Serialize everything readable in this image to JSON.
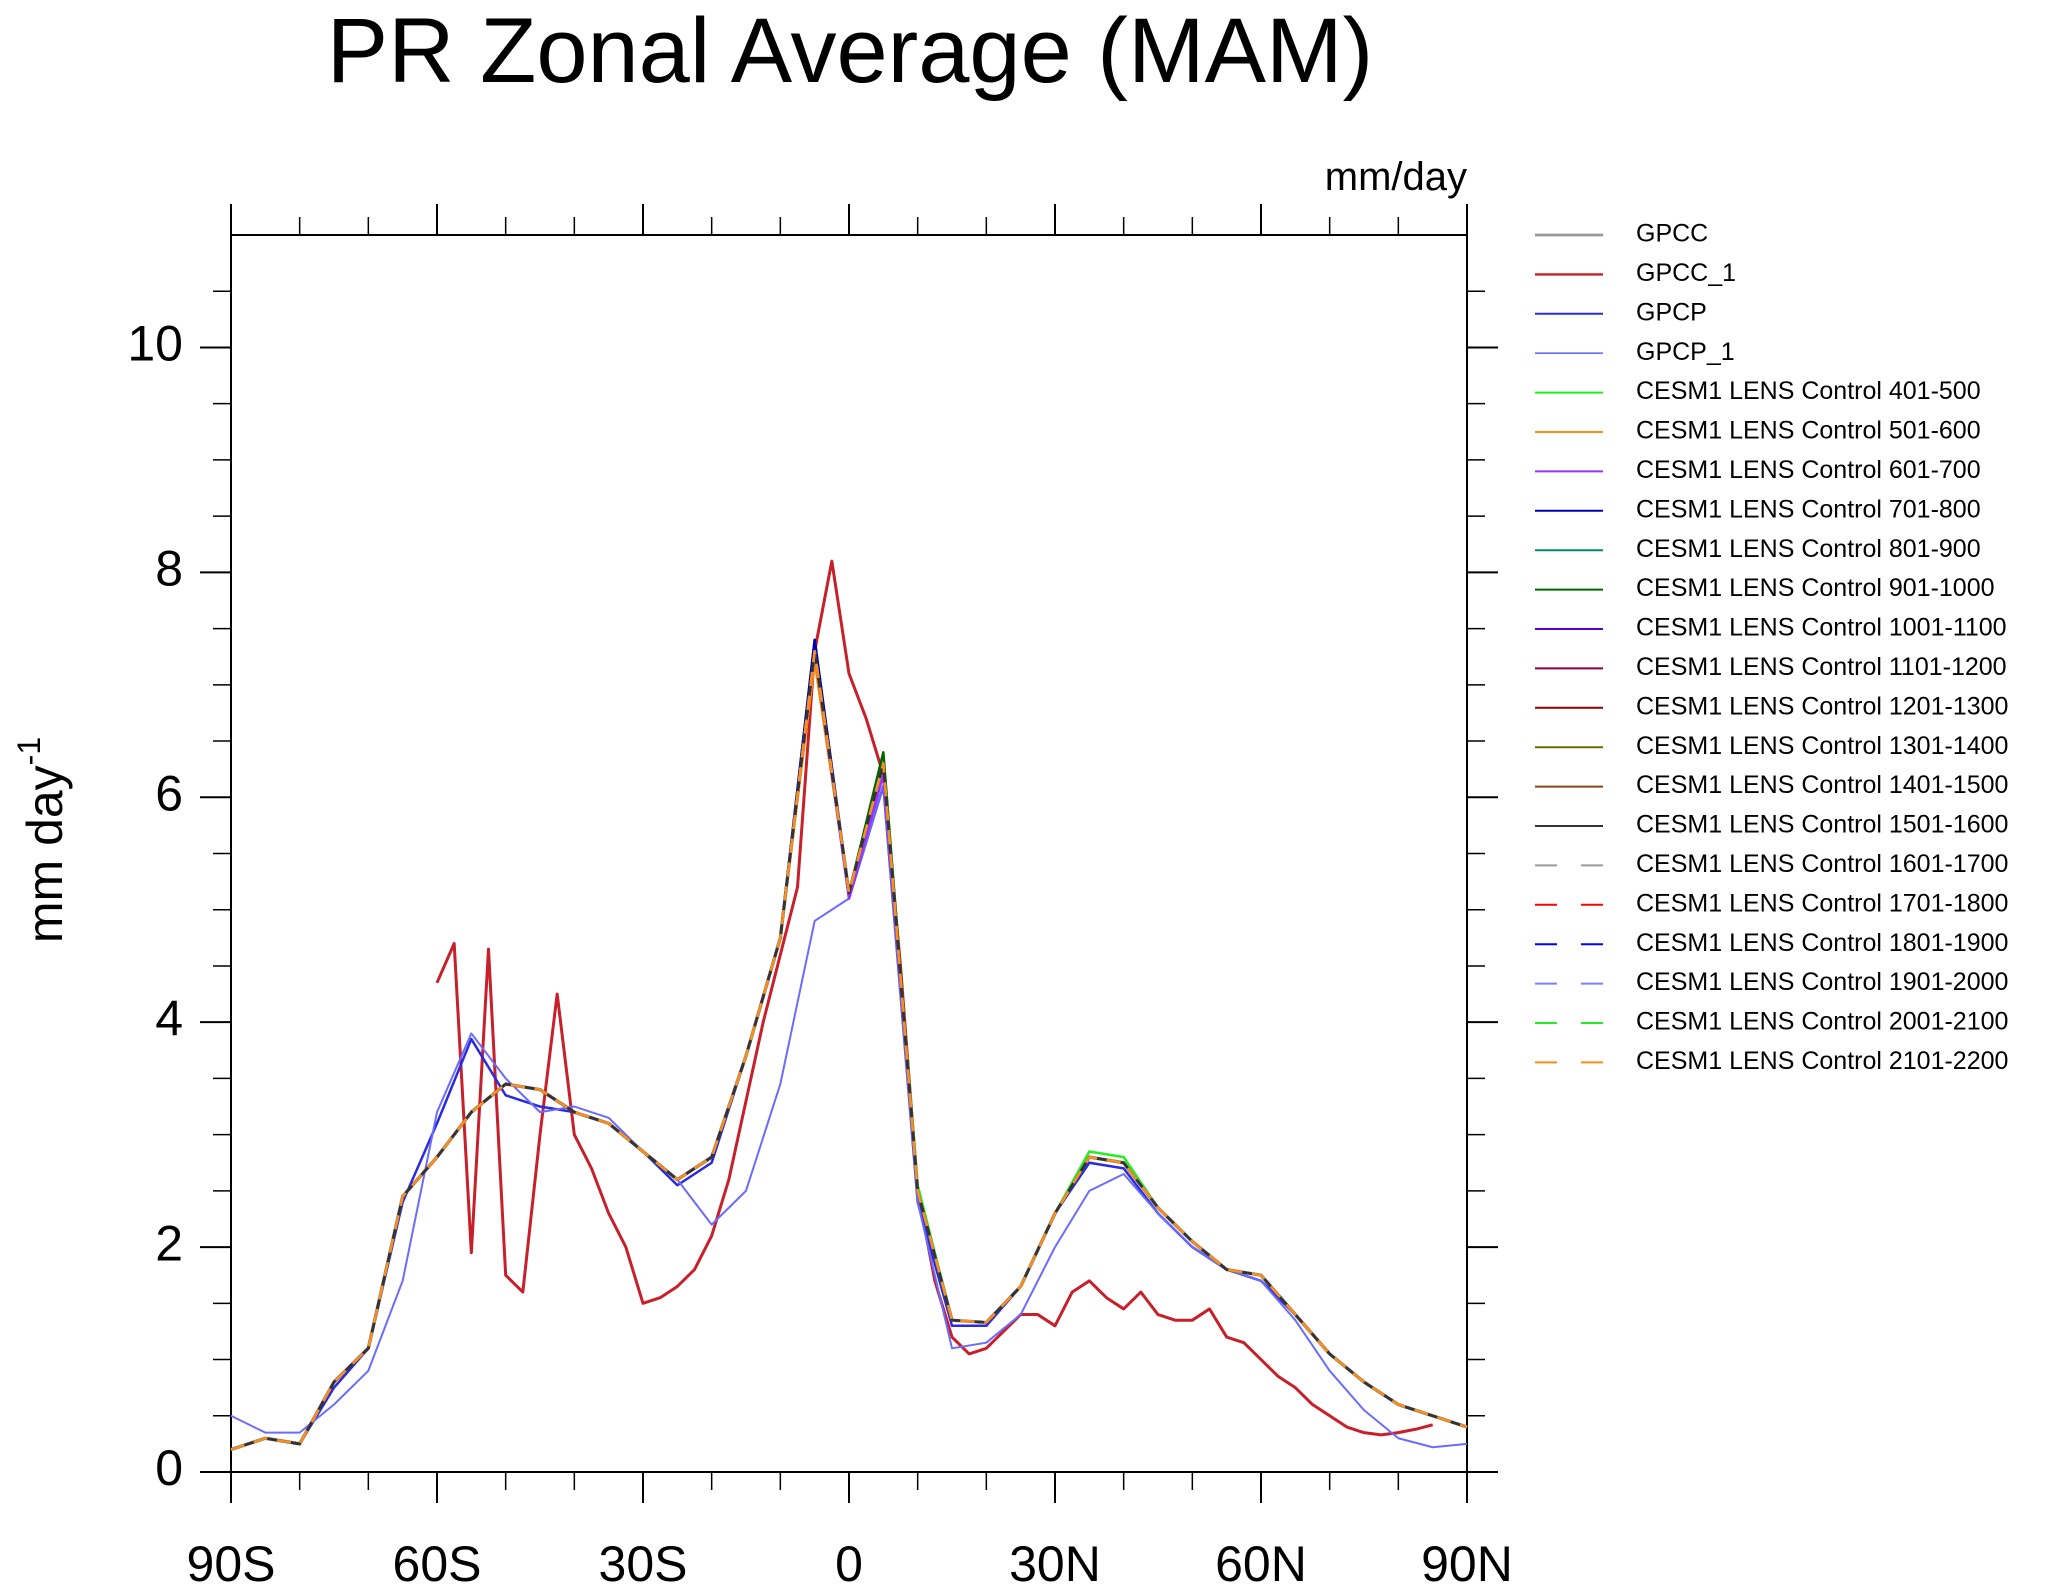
{
  "chart_data": {
    "type": "line",
    "title": "PR Zonal Average (MAM)",
    "units_label": "mm/day",
    "y_label": "mm day",
    "y_label_superscript": "-1",
    "x": [
      -90,
      -85,
      -80,
      -75,
      -70,
      -65,
      -60,
      -55,
      -50,
      -45,
      -40,
      -35,
      -30,
      -25,
      -20,
      -15,
      -10,
      -5,
      0,
      5,
      10,
      15,
      20,
      25,
      30,
      35,
      40,
      45,
      50,
      55,
      60,
      65,
      70,
      75,
      80,
      85,
      90
    ],
    "xlim": [
      -90,
      90
    ],
    "xticks": [
      {
        "value": -90,
        "label": "90S"
      },
      {
        "value": -60,
        "label": "60S"
      },
      {
        "value": -30,
        "label": "30S"
      },
      0,
      {
        "value": 30,
        "label": "30N"
      },
      {
        "value": 60,
        "label": "60N"
      },
      {
        "value": 90,
        "label": "90N"
      }
    ],
    "xminorticks": [
      -80,
      -70,
      -50,
      -40,
      -20,
      -10,
      10,
      20,
      40,
      50,
      70,
      80
    ],
    "ylim": [
      0,
      11
    ],
    "yticks": [
      0,
      2,
      4,
      6,
      8,
      10
    ],
    "yminorticks": [
      0.5,
      1,
      1.5,
      2.5,
      3,
      3.5,
      4.5,
      5,
      5.5,
      6.5,
      7,
      7.5,
      8.5,
      9,
      9.5,
      10.5
    ],
    "grid": false,
    "legend_position": "right",
    "series": [
      {
        "name": "GPCC",
        "color": "#9a9a9a",
        "width": 3.5,
        "values": [
          0.2,
          0.3,
          0.25,
          0.8,
          1.1,
          2.45,
          2.8,
          3.2,
          3.45,
          3.4,
          3.2,
          3.1,
          2.85,
          2.6,
          2.8,
          3.7,
          4.75,
          7.3,
          5.15,
          6.3,
          2.5,
          1.35,
          1.33,
          1.65,
          2.3,
          2.8,
          2.75,
          2.35,
          2.05,
          1.8,
          1.75,
          1.4,
          1.05,
          0.8,
          0.6,
          0.5,
          0.4
        ]
      },
      {
        "name": "GPCC_1",
        "color": "#c8202a",
        "width": 3,
        "x": [
          -60,
          -57.5,
          -55,
          -52.5,
          -50,
          -47.5,
          -45,
          -42.5,
          -40,
          -37.5,
          -35,
          -32.5,
          -30,
          -27.5,
          -25,
          -22.5,
          -20,
          -17.5,
          -15,
          -12.5,
          -10,
          -7.5,
          -5,
          -2.5,
          0,
          2.5,
          5,
          7.5,
          10,
          12.5,
          15,
          17.5,
          20,
          22.5,
          25,
          27.5,
          30,
          32.5,
          35,
          37.5,
          40,
          42.5,
          45,
          47.5,
          50,
          52.5,
          55,
          57.5,
          60,
          62.5,
          65,
          67.5,
          70,
          72.5,
          75,
          77.5,
          80,
          82.5,
          85
        ],
        "values": [
          4.35,
          4.7,
          1.95,
          4.65,
          1.75,
          1.6,
          3.0,
          4.25,
          3.0,
          2.7,
          2.3,
          2.0,
          1.5,
          1.55,
          1.65,
          1.8,
          2.1,
          2.6,
          3.3,
          4.0,
          4.6,
          5.2,
          7.3,
          8.1,
          7.1,
          6.7,
          6.2,
          4.5,
          2.5,
          1.7,
          1.2,
          1.05,
          1.1,
          1.25,
          1.4,
          1.4,
          1.3,
          1.6,
          1.7,
          1.55,
          1.45,
          1.6,
          1.4,
          1.35,
          1.35,
          1.45,
          1.2,
          1.15,
          1.0,
          0.85,
          0.75,
          0.6,
          0.5,
          0.4,
          0.35,
          0.33,
          0.35,
          0.38,
          0.42
        ]
      },
      {
        "name": "GPCP",
        "color": "#2a2ae0",
        "width": 2.5,
        "values": [
          0.2,
          0.3,
          0.25,
          0.75,
          1.1,
          2.4,
          3.1,
          3.85,
          3.35,
          3.25,
          3.2,
          3.1,
          2.85,
          2.55,
          2.75,
          3.7,
          4.75,
          7.4,
          5.1,
          6.1,
          2.4,
          1.3,
          1.3,
          1.65,
          2.3,
          2.75,
          2.7,
          2.3,
          2.0,
          1.8,
          1.7,
          1.4,
          1.05,
          0.8,
          0.6,
          0.5,
          0.4
        ]
      },
      {
        "name": "GPCP_1",
        "color": "#6b6bff",
        "width": 2,
        "values": [
          0.5,
          0.35,
          0.35,
          0.6,
          0.9,
          1.7,
          3.2,
          3.9,
          3.5,
          3.2,
          3.25,
          3.15,
          2.85,
          2.6,
          2.2,
          2.5,
          3.45,
          4.9,
          5.1,
          6.1,
          2.4,
          1.1,
          1.15,
          1.4,
          2.0,
          2.5,
          2.65,
          2.3,
          2.0,
          1.8,
          1.7,
          1.35,
          0.9,
          0.55,
          0.3,
          0.22,
          0.25
        ]
      },
      {
        "name": "CESM1 LENS Control 401-500",
        "color": "#22ee22",
        "width": 2.5,
        "values": [
          0.2,
          0.3,
          0.25,
          0.8,
          1.1,
          2.45,
          2.8,
          3.2,
          3.45,
          3.4,
          3.2,
          3.1,
          2.85,
          2.6,
          2.8,
          3.7,
          4.75,
          7.3,
          5.15,
          6.3,
          2.55,
          1.35,
          1.33,
          1.65,
          2.3,
          2.85,
          2.8,
          2.35,
          2.05,
          1.8,
          1.75,
          1.4,
          1.05,
          0.8,
          0.6,
          0.5,
          0.4
        ]
      },
      {
        "name": "CESM1 LENS Control 501-600",
        "color": "#ff8c1a",
        "width": 2.5,
        "values": [
          0.2,
          0.3,
          0.25,
          0.8,
          1.1,
          2.45,
          2.8,
          3.2,
          3.45,
          3.4,
          3.2,
          3.1,
          2.85,
          2.6,
          2.8,
          3.7,
          4.75,
          7.2,
          5.15,
          6.3,
          2.5,
          1.35,
          1.33,
          1.65,
          2.3,
          2.8,
          2.75,
          2.35,
          2.05,
          1.8,
          1.75,
          1.4,
          1.05,
          0.8,
          0.6,
          0.5,
          0.4
        ]
      },
      {
        "name": "CESM1 LENS Control 601-700",
        "color": "#9b30ff",
        "width": 2.5,
        "values": [
          0.2,
          0.3,
          0.25,
          0.8,
          1.1,
          2.45,
          2.8,
          3.2,
          3.45,
          3.4,
          3.2,
          3.1,
          2.85,
          2.6,
          2.8,
          3.7,
          4.75,
          7.3,
          5.1,
          6.2,
          2.5,
          1.35,
          1.33,
          1.65,
          2.3,
          2.8,
          2.75,
          2.35,
          2.05,
          1.8,
          1.75,
          1.4,
          1.05,
          0.8,
          0.6,
          0.5,
          0.4
        ]
      },
      {
        "name": "CESM1 LENS Control 701-800",
        "color": "#0000b0",
        "width": 2.5,
        "values": [
          0.2,
          0.3,
          0.25,
          0.8,
          1.1,
          2.45,
          2.8,
          3.2,
          3.45,
          3.4,
          3.2,
          3.1,
          2.85,
          2.6,
          2.8,
          3.7,
          4.75,
          7.4,
          5.15,
          6.3,
          2.5,
          1.35,
          1.33,
          1.65,
          2.3,
          2.8,
          2.75,
          2.35,
          2.05,
          1.8,
          1.75,
          1.4,
          1.05,
          0.8,
          0.6,
          0.5,
          0.4
        ]
      },
      {
        "name": "CESM1 LENS Control 801-900",
        "color": "#008b6b",
        "width": 2.5,
        "values": [
          0.2,
          0.3,
          0.25,
          0.8,
          1.1,
          2.45,
          2.8,
          3.2,
          3.45,
          3.4,
          3.2,
          3.1,
          2.85,
          2.6,
          2.8,
          3.7,
          4.75,
          7.3,
          5.15,
          6.3,
          2.5,
          1.35,
          1.33,
          1.65,
          2.3,
          2.8,
          2.75,
          2.35,
          2.05,
          1.8,
          1.75,
          1.4,
          1.05,
          0.8,
          0.6,
          0.5,
          0.4
        ]
      },
      {
        "name": "CESM1 LENS Control 901-1000",
        "color": "#006400",
        "width": 2.5,
        "values": [
          0.2,
          0.3,
          0.25,
          0.8,
          1.1,
          2.45,
          2.8,
          3.2,
          3.45,
          3.4,
          3.2,
          3.1,
          2.85,
          2.6,
          2.8,
          3.7,
          4.75,
          7.3,
          5.15,
          6.4,
          2.5,
          1.35,
          1.33,
          1.65,
          2.3,
          2.8,
          2.75,
          2.35,
          2.05,
          1.8,
          1.75,
          1.4,
          1.05,
          0.8,
          0.6,
          0.5,
          0.4
        ]
      },
      {
        "name": "CESM1 LENS Control 1001-1100",
        "color": "#5a00c8",
        "width": 2.5,
        "values": [
          0.2,
          0.3,
          0.25,
          0.8,
          1.1,
          2.45,
          2.8,
          3.2,
          3.45,
          3.4,
          3.2,
          3.1,
          2.85,
          2.6,
          2.8,
          3.7,
          4.75,
          7.3,
          5.15,
          6.3,
          2.5,
          1.35,
          1.33,
          1.65,
          2.3,
          2.8,
          2.75,
          2.35,
          2.05,
          1.8,
          1.75,
          1.4,
          1.05,
          0.8,
          0.6,
          0.5,
          0.4
        ]
      },
      {
        "name": "CESM1 LENS Control 1101-1200",
        "color": "#8b0045",
        "width": 2.5,
        "values": [
          0.2,
          0.3,
          0.25,
          0.8,
          1.1,
          2.45,
          2.8,
          3.2,
          3.45,
          3.4,
          3.2,
          3.1,
          2.85,
          2.6,
          2.8,
          3.7,
          4.75,
          7.3,
          5.15,
          6.3,
          2.5,
          1.35,
          1.33,
          1.65,
          2.3,
          2.8,
          2.75,
          2.35,
          2.05,
          1.8,
          1.75,
          1.4,
          1.05,
          0.8,
          0.6,
          0.5,
          0.4
        ]
      },
      {
        "name": "CESM1 LENS Control 1201-1300",
        "color": "#8b0000",
        "width": 2.5,
        "values": [
          0.2,
          0.3,
          0.25,
          0.8,
          1.1,
          2.45,
          2.8,
          3.2,
          3.45,
          3.4,
          3.2,
          3.1,
          2.85,
          2.6,
          2.8,
          3.7,
          4.75,
          7.3,
          5.15,
          6.3,
          2.5,
          1.35,
          1.33,
          1.65,
          2.3,
          2.8,
          2.75,
          2.35,
          2.05,
          1.8,
          1.75,
          1.4,
          1.05,
          0.8,
          0.6,
          0.5,
          0.4
        ]
      },
      {
        "name": "CESM1 LENS Control 1301-1400",
        "color": "#6b6b00",
        "width": 2.5,
        "values": [
          0.2,
          0.3,
          0.25,
          0.8,
          1.1,
          2.45,
          2.8,
          3.2,
          3.45,
          3.4,
          3.2,
          3.1,
          2.85,
          2.6,
          2.8,
          3.7,
          4.75,
          7.3,
          5.15,
          6.3,
          2.5,
          1.35,
          1.33,
          1.65,
          2.3,
          2.8,
          2.75,
          2.35,
          2.05,
          1.8,
          1.75,
          1.4,
          1.05,
          0.8,
          0.6,
          0.5,
          0.4
        ]
      },
      {
        "name": "CESM1 LENS Control 1401-1500",
        "color": "#8b4513",
        "width": 2.5,
        "values": [
          0.2,
          0.3,
          0.25,
          0.8,
          1.1,
          2.45,
          2.8,
          3.2,
          3.45,
          3.4,
          3.2,
          3.1,
          2.85,
          2.6,
          2.8,
          3.7,
          4.75,
          7.3,
          5.15,
          6.3,
          2.5,
          1.35,
          1.33,
          1.65,
          2.3,
          2.8,
          2.75,
          2.35,
          2.05,
          1.8,
          1.75,
          1.4,
          1.05,
          0.8,
          0.6,
          0.5,
          0.4
        ]
      },
      {
        "name": "CESM1 LENS Control 1501-1600",
        "color": "#333333",
        "width": 2.5,
        "values": [
          0.2,
          0.3,
          0.25,
          0.8,
          1.1,
          2.45,
          2.8,
          3.2,
          3.45,
          3.4,
          3.2,
          3.1,
          2.85,
          2.6,
          2.8,
          3.7,
          4.75,
          7.3,
          5.15,
          6.3,
          2.5,
          1.35,
          1.33,
          1.65,
          2.3,
          2.8,
          2.75,
          2.35,
          2.05,
          1.8,
          1.75,
          1.4,
          1.05,
          0.8,
          0.6,
          0.5,
          0.4
        ]
      },
      {
        "name": "CESM1 LENS Control 1601-1700",
        "color": "#9a9a9a",
        "width": 2.5,
        "dashed": true,
        "values": [
          0.2,
          0.3,
          0.25,
          0.8,
          1.1,
          2.45,
          2.8,
          3.2,
          3.45,
          3.4,
          3.2,
          3.1,
          2.85,
          2.6,
          2.8,
          3.7,
          4.75,
          7.3,
          5.15,
          6.3,
          2.5,
          1.35,
          1.33,
          1.65,
          2.3,
          2.8,
          2.75,
          2.35,
          2.05,
          1.8,
          1.75,
          1.4,
          1.05,
          0.8,
          0.6,
          0.5,
          0.4
        ]
      },
      {
        "name": "CESM1 LENS Control 1701-1800",
        "color": "#ff0000",
        "width": 2.5,
        "dashed": true,
        "values": [
          0.2,
          0.3,
          0.25,
          0.8,
          1.1,
          2.45,
          2.8,
          3.2,
          3.45,
          3.4,
          3.2,
          3.1,
          2.85,
          2.6,
          2.8,
          3.7,
          4.75,
          7.3,
          5.15,
          6.3,
          2.5,
          1.35,
          1.33,
          1.65,
          2.3,
          2.8,
          2.75,
          2.35,
          2.05,
          1.8,
          1.75,
          1.4,
          1.05,
          0.8,
          0.6,
          0.5,
          0.4
        ]
      },
      {
        "name": "CESM1 LENS Control 1801-1900",
        "color": "#0000ff",
        "width": 2.5,
        "dashed": true,
        "values": [
          0.2,
          0.3,
          0.25,
          0.8,
          1.1,
          2.45,
          2.8,
          3.2,
          3.45,
          3.4,
          3.2,
          3.1,
          2.85,
          2.6,
          2.8,
          3.7,
          4.75,
          7.3,
          5.15,
          6.3,
          2.5,
          1.35,
          1.33,
          1.65,
          2.3,
          2.8,
          2.75,
          2.35,
          2.05,
          1.8,
          1.75,
          1.4,
          1.05,
          0.8,
          0.6,
          0.5,
          0.4
        ]
      },
      {
        "name": "CESM1 LENS Control 1901-2000",
        "color": "#7f7fff",
        "width": 2.5,
        "dashed": true,
        "values": [
          0.2,
          0.3,
          0.25,
          0.8,
          1.1,
          2.45,
          2.8,
          3.2,
          3.45,
          3.4,
          3.2,
          3.1,
          2.85,
          2.6,
          2.8,
          3.7,
          4.75,
          7.3,
          5.15,
          6.3,
          2.5,
          1.35,
          1.33,
          1.65,
          2.3,
          2.8,
          2.75,
          2.35,
          2.05,
          1.8,
          1.75,
          1.4,
          1.05,
          0.8,
          0.6,
          0.5,
          0.4
        ]
      },
      {
        "name": "CESM1 LENS Control 2001-2100",
        "color": "#22ee22",
        "width": 2.5,
        "dashed": true,
        "values": [
          0.2,
          0.3,
          0.25,
          0.8,
          1.1,
          2.45,
          2.8,
          3.2,
          3.45,
          3.4,
          3.2,
          3.1,
          2.85,
          2.6,
          2.8,
          3.7,
          4.75,
          7.3,
          5.15,
          6.3,
          2.5,
          1.35,
          1.33,
          1.65,
          2.3,
          2.8,
          2.75,
          2.35,
          2.05,
          1.8,
          1.75,
          1.4,
          1.05,
          0.8,
          0.6,
          0.5,
          0.4
        ]
      },
      {
        "name": "CESM1 LENS Control 2101-2200",
        "color": "#ff8c1a",
        "width": 2.5,
        "dashed": true,
        "values": [
          0.2,
          0.3,
          0.25,
          0.8,
          1.1,
          2.45,
          2.8,
          3.2,
          3.45,
          3.4,
          3.2,
          3.1,
          2.85,
          2.6,
          2.8,
          3.7,
          4.75,
          7.3,
          5.15,
          6.3,
          2.5,
          1.35,
          1.33,
          1.65,
          2.3,
          2.8,
          2.75,
          2.35,
          2.05,
          1.8,
          1.75,
          1.4,
          1.05,
          0.8,
          0.6,
          0.5,
          0.4
        ]
      }
    ]
  }
}
